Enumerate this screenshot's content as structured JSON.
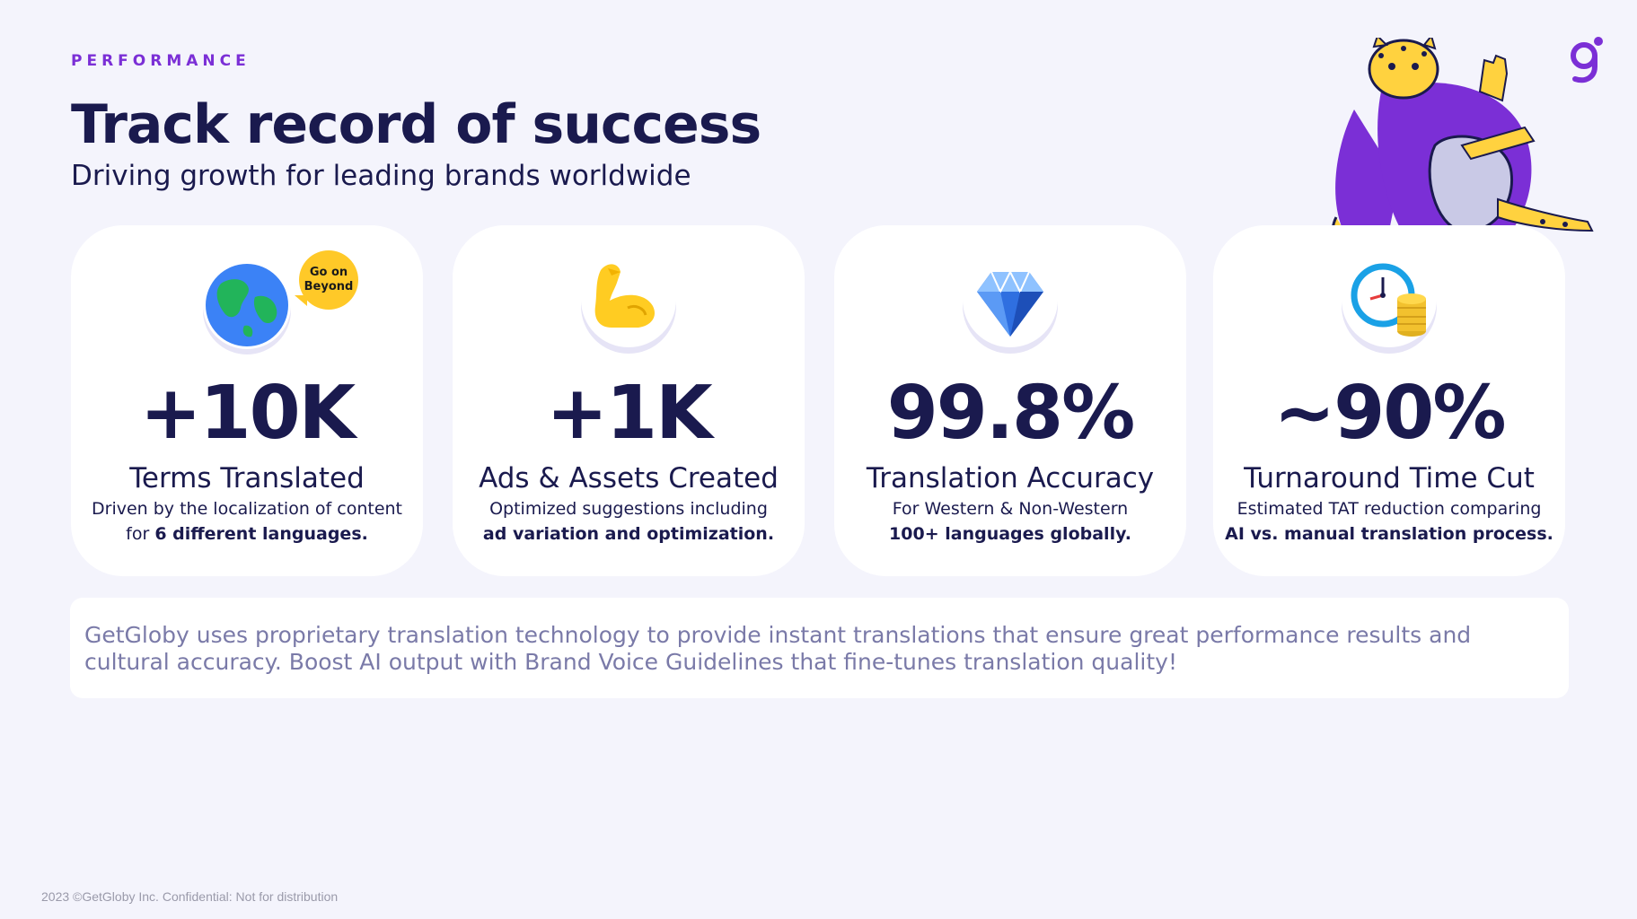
{
  "header": {
    "eyebrow": "PERFORMANCE",
    "title": "Track record of success",
    "subtitle": "Driving growth for leading brands worldwide"
  },
  "cards": [
    {
      "icon": "globe-icon",
      "badge": {
        "line1": "Go on",
        "line2": "Beyond"
      },
      "stat": "+10K",
      "label": "Terms Translated",
      "desc_line1": "Driven by the localization of content",
      "desc_prefix": "for ",
      "desc_bold": "6 different languages."
    },
    {
      "icon": "flexed-bicep-icon",
      "stat": "+1K",
      "label": "Ads & Assets Created",
      "desc_line1": "Optimized suggestions including",
      "desc_bold": "ad variation and optimization."
    },
    {
      "icon": "diamond-icon",
      "stat": "99.8%",
      "label": "Translation Accuracy",
      "desc_line1": "For Western & Non-Western",
      "desc_bold": "100+ languages globally."
    },
    {
      "icon": "clock-coins-icon",
      "stat": "~90%",
      "label": "Turnaround Time Cut",
      "desc_line1": "Estimated TAT reduction comparing",
      "desc_bold": "AI vs. manual translation process."
    }
  ],
  "info": {
    "text": "GetGloby uses proprietary translation technology to provide instant translations that ensure great performance results and cultural accuracy. Boost AI output with Brand Voice Guidelines that fine-tunes translation quality!"
  },
  "footer": {
    "text": "2023  ©GetGloby Inc. Confidential: Not for distribution"
  },
  "colors": {
    "background": "#f4f4fc",
    "accent": "#7b2fd6",
    "heading": "#1a1a4e",
    "body_muted": "#7a7aa8",
    "badge": "#ffc928"
  }
}
